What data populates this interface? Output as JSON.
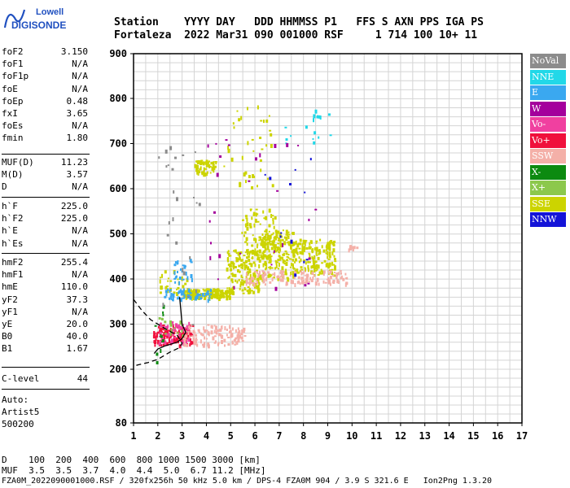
{
  "logo": {
    "line1": "Lowell",
    "line2": "DIGISONDE"
  },
  "header": {
    "line1": "Station    YYYY DAY   DDD HHMMSS P1   FFS S AXN PPS IGA PS",
    "line2": "Fortaleza  2022 Mar31 090 001000 RSF     1 714 100 10+ 11"
  },
  "params": {
    "group1": [
      {
        "k": "foF2",
        "v": "3.150"
      },
      {
        "k": "foF1",
        "v": "N/A"
      },
      {
        "k": "foF1p",
        "v": "N/A"
      },
      {
        "k": "foE",
        "v": "N/A"
      },
      {
        "k": "foEp",
        "v": "0.48"
      },
      {
        "k": "fxI",
        "v": "3.65"
      },
      {
        "k": "foEs",
        "v": "N/A"
      },
      {
        "k": "fmin",
        "v": "1.80"
      }
    ],
    "group2": [
      {
        "k": "MUF(D)",
        "v": "11.23"
      },
      {
        "k": "M(D)",
        "v": "3.57"
      },
      {
        "k": "D",
        "v": "N/A"
      }
    ],
    "group3": [
      {
        "k": "h`F",
        "v": "225.0"
      },
      {
        "k": "h`F2",
        "v": "225.0"
      },
      {
        "k": "h`E",
        "v": "N/A"
      },
      {
        "k": "h`Es",
        "v": "N/A"
      }
    ],
    "group4": [
      {
        "k": "hmF2",
        "v": "255.4"
      },
      {
        "k": "hmF1",
        "v": "N/A"
      },
      {
        "k": "hmE",
        "v": "110.0"
      },
      {
        "k": "yF2",
        "v": "37.3"
      },
      {
        "k": "yF1",
        "v": "N/A"
      },
      {
        "k": "yE",
        "v": "20.0"
      },
      {
        "k": "B0",
        "v": "40.0"
      },
      {
        "k": "B1",
        "v": "1.67"
      }
    ],
    "group5": [
      {
        "k": "C-level",
        "v": "44"
      }
    ],
    "auto": [
      "Auto:",
      "Artist5",
      "500200"
    ]
  },
  "legend": [
    {
      "label": "NoVal",
      "color": "#8c8c8c"
    },
    {
      "label": "NNE",
      "color": "#22d8e8"
    },
    {
      "label": "E",
      "color": "#3aa8f0"
    },
    {
      "label": "W",
      "color": "#a4009c"
    },
    {
      "label": "Vo-",
      "color": "#f040a0"
    },
    {
      "label": "Vo+",
      "color": "#f0103c"
    },
    {
      "label": "SSW",
      "color": "#f4b0a8"
    },
    {
      "label": "X-",
      "color": "#0c8a10"
    },
    {
      "label": "X+",
      "color": "#8cc84c"
    },
    {
      "label": "SSE",
      "color": "#ccd400"
    },
    {
      "label": "NNW",
      "color": "#1414d8"
    }
  ],
  "footer": {
    "d_line": "D    100  200  400  600  800 1000 1500 3000 [km]",
    "muf_line": "MUF  3.5  3.5  3.7  4.0  4.4  5.0  6.7 11.2 [MHz]",
    "file_line": "FZA0M_2022090001000.RSF / 320fx256h 50 kHz 5.0 km / DPS-4 FZA0M 904 / 3.9 S 321.6 E   Ion2Png 1.3.20"
  },
  "chart_data": {
    "type": "scatter",
    "xlim": [
      1,
      17
    ],
    "ylim": [
      80,
      900
    ],
    "x_ticks": [
      "1",
      "2",
      "3",
      "4",
      "5",
      "6",
      "7",
      "8",
      "9",
      "10",
      "11",
      "12",
      "13",
      "14",
      "15",
      "16",
      "17"
    ],
    "y_ticks": [
      "80",
      "200",
      "300",
      "400",
      "500",
      "600",
      "700",
      "800",
      "900"
    ],
    "grid": true,
    "legend_position": "right",
    "clusters": [
      {
        "color": "#ccd400",
        "xr": [
          3.0,
          5.0
        ],
        "yr": [
          360,
          380
        ],
        "n": 180
      },
      {
        "color": "#ccd400",
        "xr": [
          4.8,
          6.2
        ],
        "yr": [
          370,
          470
        ],
        "n": 170
      },
      {
        "color": "#ccd400",
        "xr": [
          5.4,
          6.8
        ],
        "yr": [
          450,
          560
        ],
        "n": 90
      },
      {
        "color": "#ccd400",
        "xr": [
          6.2,
          7.6
        ],
        "yr": [
          400,
          510
        ],
        "n": 170
      },
      {
        "color": "#ccd400",
        "xr": [
          7.5,
          9.3
        ],
        "yr": [
          410,
          490
        ],
        "n": 160
      },
      {
        "color": "#ccd400",
        "xr": [
          3.5,
          4.4
        ],
        "yr": [
          635,
          665
        ],
        "n": 60
      },
      {
        "color": "#ccd400",
        "xr": [
          4.7,
          6.7
        ],
        "yr": [
          600,
          790
        ],
        "n": 40
      },
      {
        "color": "#ccd400",
        "xr": [
          2.0,
          3.2
        ],
        "yr": [
          370,
          420
        ],
        "n": 30
      },
      {
        "color": "#3aa8f0",
        "xr": [
          2.2,
          4.2
        ],
        "yr": [
          355,
          380
        ],
        "n": 50
      },
      {
        "color": "#3aa8f0",
        "xr": [
          2.6,
          3.4
        ],
        "yr": [
          395,
          450
        ],
        "n": 25
      },
      {
        "color": "#22d8e8",
        "xr": [
          7.2,
          9.2
        ],
        "yr": [
          700,
          780
        ],
        "n": 18
      },
      {
        "color": "#f0103c",
        "xr": [
          1.8,
          3.4
        ],
        "yr": [
          255,
          300
        ],
        "n": 140
      },
      {
        "color": "#f040a0",
        "xr": [
          2.0,
          3.3
        ],
        "yr": [
          260,
          310
        ],
        "n": 50
      },
      {
        "color": "#f4b0a8",
        "xr": [
          3.0,
          5.6
        ],
        "yr": [
          255,
          300
        ],
        "n": 120
      },
      {
        "color": "#f4b0a8",
        "xr": [
          5.6,
          9.8
        ],
        "yr": [
          390,
          420
        ],
        "n": 140
      },
      {
        "color": "#f4b0a8",
        "xr": [
          9.8,
          10.2
        ],
        "yr": [
          468,
          478
        ],
        "n": 8
      },
      {
        "color": "#0c8a10",
        "xr": [
          1.8,
          2.2
        ],
        "yr": [
          215,
          345
        ],
        "n": 12
      },
      {
        "color": "#8cc84c",
        "xr": [
          2.0,
          3.0
        ],
        "yr": [
          275,
          320
        ],
        "n": 15
      },
      {
        "color": "#a4009c",
        "xr": [
          4.0,
          8.5
        ],
        "yr": [
          380,
          720
        ],
        "n": 30
      },
      {
        "color": "#1414d8",
        "xr": [
          6.2,
          8.6
        ],
        "yr": [
          400,
          680
        ],
        "n": 12
      },
      {
        "color": "#8c8c8c",
        "xr": [
          2.0,
          3.8
        ],
        "yr": [
          290,
          700
        ],
        "n": 25
      }
    ],
    "profile_line": [
      [
        1.0,
        355
      ],
      [
        1.35,
        330
      ],
      [
        1.7,
        310
      ],
      [
        2.3,
        290
      ],
      [
        2.8,
        275
      ],
      [
        3.0,
        258
      ],
      [
        2.9,
        248
      ],
      [
        2.5,
        238
      ],
      [
        2.0,
        222
      ],
      [
        1.6,
        215
      ],
      [
        1.2,
        210
      ],
      [
        1.0,
        207
      ]
    ],
    "trace_line": [
      [
        1.85,
        235
      ],
      [
        2.0,
        245
      ],
      [
        2.3,
        252
      ],
      [
        2.8,
        260
      ],
      [
        3.0,
        268
      ],
      [
        3.15,
        282
      ],
      [
        3.0,
        300
      ],
      [
        2.9,
        360
      ]
    ]
  }
}
